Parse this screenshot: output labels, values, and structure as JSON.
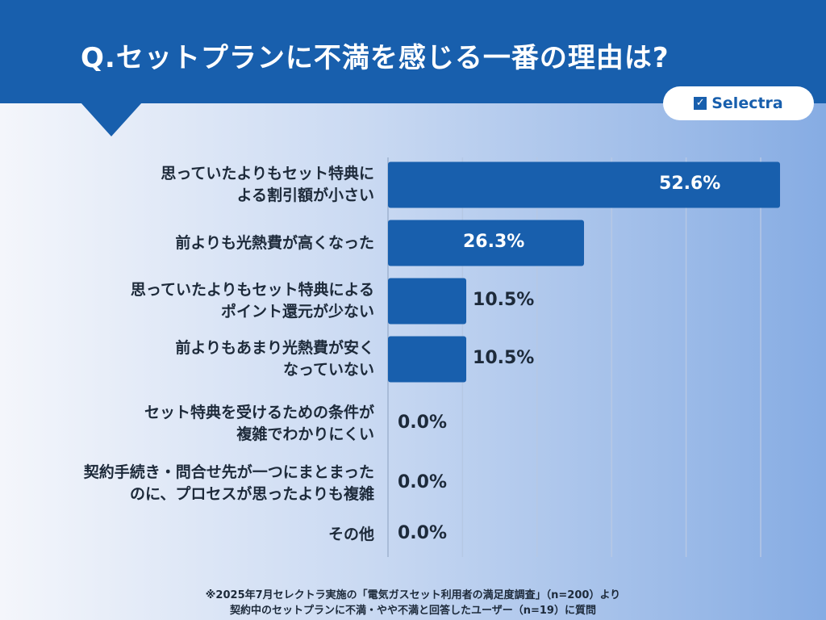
{
  "header": {
    "title": "Q.セットプランに不満を感じる一番の理由は?",
    "logo": "Selectra"
  },
  "chart_data": {
    "type": "bar",
    "orientation": "horizontal",
    "title": "Q.セットプランに不満を感じる一番の理由は?",
    "categories": [
      "思っていたよりもセット特典に\nよる割引額が小さい",
      "前よりも光熱費が高くなった",
      "思っていたよりもセット特典による\nポイント還元が少ない",
      "前よりもあまり光熱費が安く\nなっていない",
      "セット特典を受けるための条件が\n複雑でわかりにくい",
      "契約手続き・問合せ先が一つにまとまった\nのに、プロセスが思ったよりも複雑",
      "その他"
    ],
    "values": [
      52.6,
      26.3,
      10.5,
      10.5,
      0.0,
      0.0,
      0.0
    ],
    "value_labels": [
      "52.6%",
      "26.3%",
      "10.5%",
      "10.5%",
      "0.0%",
      "0.0%",
      "0.0%"
    ],
    "xlim": [
      0,
      60
    ],
    "grid": true,
    "bar_color": "#185fad"
  },
  "footnote": [
    "※2025年7月セレクトラ実施の「電気ガスセット利用者の満足度調査」（n=200）より",
    "契約中のセットプランに不満・やや不満と回答したユーザー（n=19）に質問"
  ]
}
